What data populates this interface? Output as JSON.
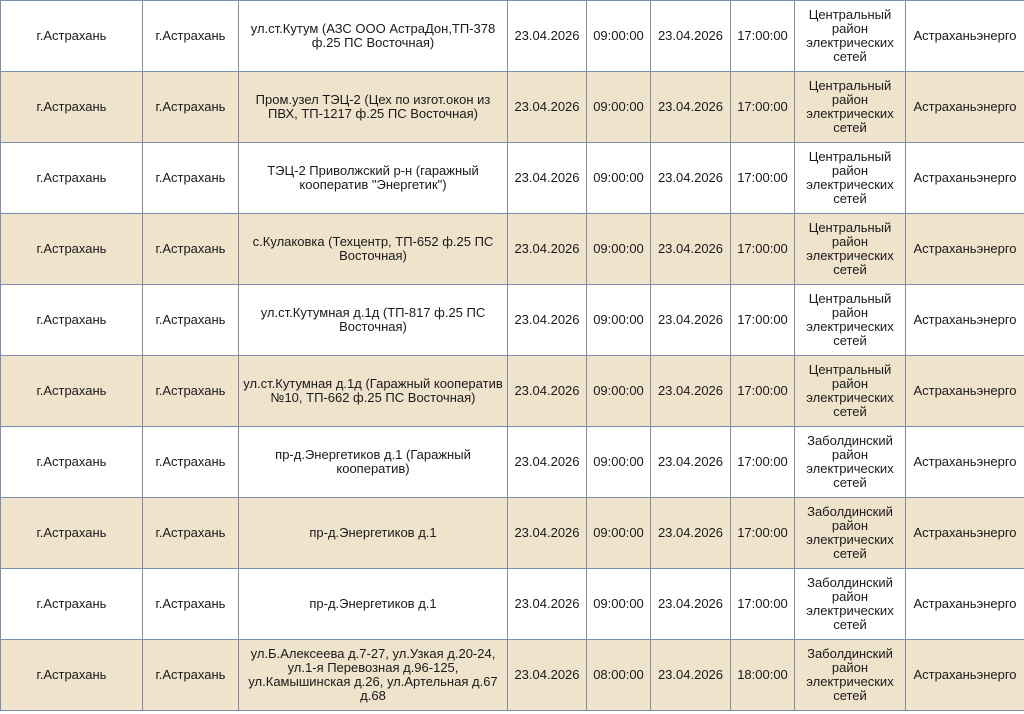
{
  "table": {
    "rows": [
      [
        "г.Астрахань",
        "г.Астрахань",
        "ул.ст.Кутум (АЗС ООО АстраДон,ТП-378 ф.25 ПС Восточная)",
        "23.04.2026",
        "09:00:00",
        "23.04.2026",
        "17:00:00",
        "Центральный район электрических сетей",
        "Астраханьэнерго"
      ],
      [
        "г.Астрахань",
        "г.Астрахань",
        "Пром.узел ТЭЦ-2 (Цех по изгот.окон из ПВХ, ТП-1217 ф.25 ПС Восточная)",
        "23.04.2026",
        "09:00:00",
        "23.04.2026",
        "17:00:00",
        "Центральный район электрических сетей",
        "Астраханьэнерго"
      ],
      [
        "г.Астрахань",
        "г.Астрахань",
        "ТЭЦ-2 Приволжский р-н (гаражный кооператив \"Энергетик\")",
        "23.04.2026",
        "09:00:00",
        "23.04.2026",
        "17:00:00",
        "Центральный район электрических сетей",
        "Астраханьэнерго"
      ],
      [
        "г.Астрахань",
        "г.Астрахань",
        "с.Кулаковка (Техцентр, ТП-652 ф.25 ПС Восточная)",
        "23.04.2026",
        "09:00:00",
        "23.04.2026",
        "17:00:00",
        "Центральный район электрических сетей",
        "Астраханьэнерго"
      ],
      [
        "г.Астрахань",
        "г.Астрахань",
        "ул.ст.Кутумная д.1д (ТП-817 ф.25 ПС Восточная)",
        "23.04.2026",
        "09:00:00",
        "23.04.2026",
        "17:00:00",
        "Центральный район электрических сетей",
        "Астраханьэнерго"
      ],
      [
        "г.Астрахань",
        "г.Астрахань",
        "ул.ст.Кутумная д.1д (Гаражный кооператив №10, ТП-662 ф.25 ПС Восточная)",
        "23.04.2026",
        "09:00:00",
        "23.04.2026",
        "17:00:00",
        "Центральный район электрических сетей",
        "Астраханьэнерго"
      ],
      [
        "г.Астрахань",
        "г.Астрахань",
        "пр-д.Энергетиков д.1 (Гаражный кооператив)",
        "23.04.2026",
        "09:00:00",
        "23.04.2026",
        "17:00:00",
        "Заболдинский район электрических сетей",
        "Астраханьэнерго"
      ],
      [
        "г.Астрахань",
        "г.Астрахань",
        "пр-д.Энергетиков д.1",
        "23.04.2026",
        "09:00:00",
        "23.04.2026",
        "17:00:00",
        "Заболдинский район электрических сетей",
        "Астраханьэнерго"
      ],
      [
        "г.Астрахань",
        "г.Астрахань",
        "пр-д.Энергетиков д.1",
        "23.04.2026",
        "09:00:00",
        "23.04.2026",
        "17:00:00",
        "Заболдинский район электрических сетей",
        "Астраханьэнерго"
      ],
      [
        "г.Астрахань",
        "г.Астрахань",
        "ул.Б.Алексеева д.7-27, ул.Узкая д.20-24, ул.1-я Перевозная д.96-125, ул.Камышинская д.26, ул.Артельная д.67 д.68",
        "23.04.2026",
        "08:00:00",
        "23.04.2026",
        "18:00:00",
        "Заболдинский район электрических сетей",
        "Астраханьэнерго"
      ]
    ]
  }
}
